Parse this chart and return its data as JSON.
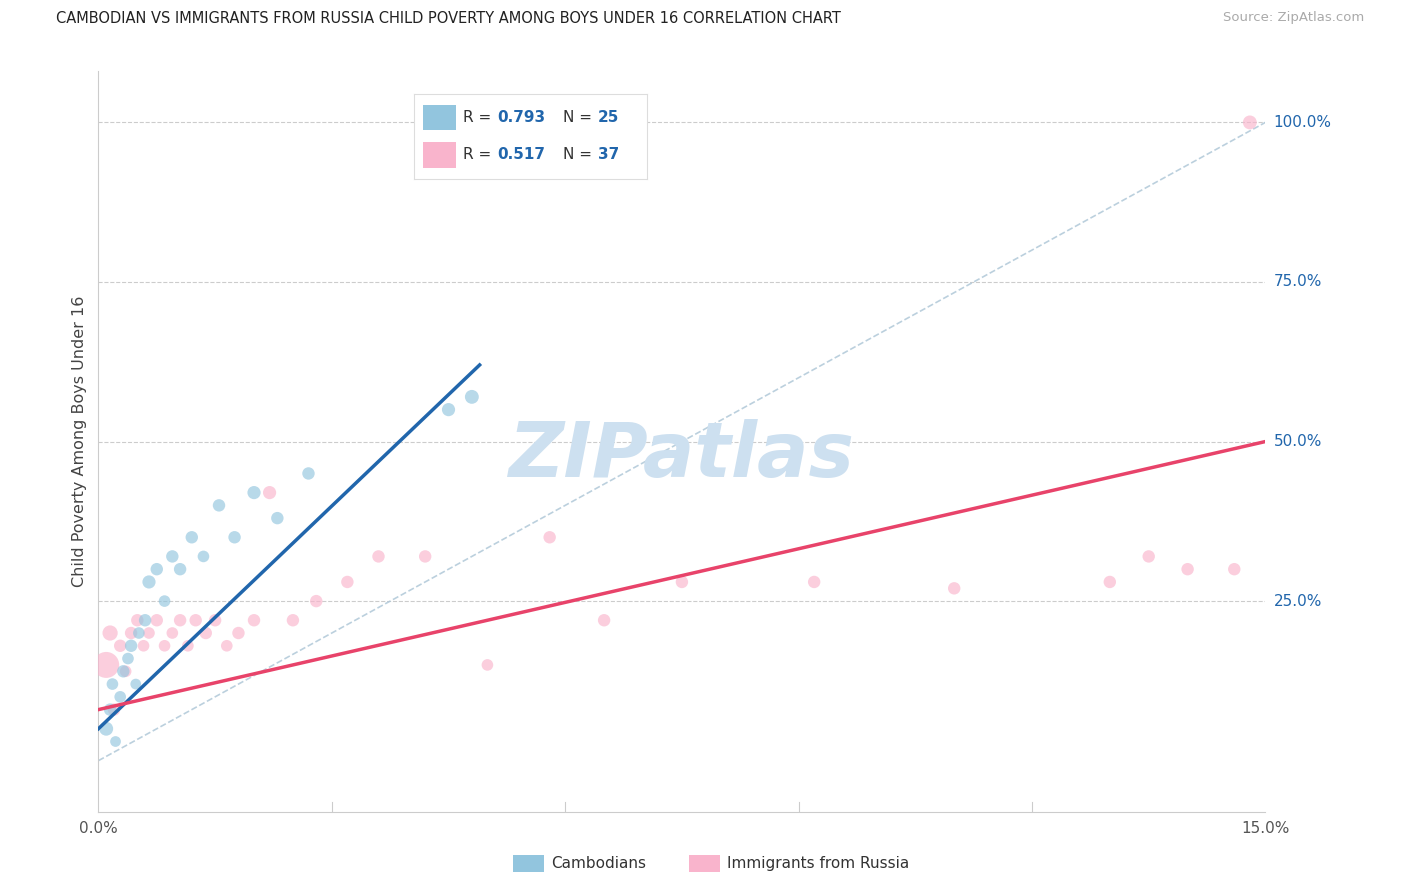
{
  "title": "CAMBODIAN VS IMMIGRANTS FROM RUSSIA CHILD POVERTY AMONG BOYS UNDER 16 CORRELATION CHART",
  "source": "Source: ZipAtlas.com",
  "ylabel": "Child Poverty Among Boys Under 16",
  "xmin": 0.0,
  "xmax": 15.0,
  "ymin": 0.0,
  "ymax": 105.0,
  "blue_color": "#92c5de",
  "pink_color": "#f9b4cc",
  "blue_line_color": "#2166ac",
  "pink_line_color": "#e8436a",
  "ref_line_color": "#b0c8d8",
  "watermark": "ZIPatlas",
  "watermark_color": "#cde0f0",
  "bottom_legend_cambodians": "Cambodians",
  "bottom_legend_russia": "Immigrants from Russia",
  "cambodian_x": [
    0.1,
    0.15,
    0.18,
    0.22,
    0.28,
    0.32,
    0.38,
    0.42,
    0.48,
    0.52,
    0.6,
    0.65,
    0.75,
    0.85,
    0.95,
    1.05,
    1.2,
    1.35,
    1.55,
    1.75,
    2.0,
    2.3,
    2.7,
    4.5,
    4.8
  ],
  "cambodian_y": [
    5,
    8,
    12,
    3,
    10,
    14,
    16,
    18,
    12,
    20,
    22,
    28,
    30,
    25,
    32,
    30,
    35,
    32,
    40,
    35,
    42,
    38,
    45,
    55,
    57
  ],
  "cambodian_size": [
    100,
    80,
    70,
    60,
    70,
    80,
    70,
    80,
    60,
    70,
    80,
    90,
    80,
    70,
    80,
    80,
    80,
    70,
    80,
    80,
    90,
    80,
    80,
    90,
    100
  ],
  "russia_x": [
    0.1,
    0.15,
    0.2,
    0.28,
    0.35,
    0.42,
    0.5,
    0.58,
    0.65,
    0.75,
    0.85,
    0.95,
    1.05,
    1.15,
    1.25,
    1.38,
    1.5,
    1.65,
    1.8,
    2.0,
    2.2,
    2.5,
    2.8,
    3.2,
    3.6,
    4.2,
    5.0,
    5.8,
    6.5,
    7.5,
    9.2,
    11.0,
    13.0,
    13.5,
    14.0,
    14.6,
    14.8
  ],
  "russia_y": [
    15,
    20,
    8,
    18,
    14,
    20,
    22,
    18,
    20,
    22,
    18,
    20,
    22,
    18,
    22,
    20,
    22,
    18,
    20,
    22,
    42,
    22,
    25,
    28,
    32,
    32,
    15,
    35,
    22,
    28,
    28,
    27,
    28,
    32,
    30,
    30,
    100
  ],
  "russia_size": [
    350,
    120,
    80,
    80,
    70,
    80,
    80,
    70,
    70,
    80,
    70,
    70,
    80,
    70,
    80,
    80,
    80,
    70,
    80,
    80,
    90,
    80,
    80,
    80,
    80,
    80,
    70,
    80,
    80,
    80,
    80,
    80,
    80,
    80,
    80,
    80,
    100
  ],
  "camb_line_x": [
    0.0,
    4.9
  ],
  "camb_line_y": [
    5.0,
    62.0
  ],
  "russia_line_x": [
    0.0,
    15.0
  ],
  "russia_line_y": [
    8.0,
    50.0
  ]
}
